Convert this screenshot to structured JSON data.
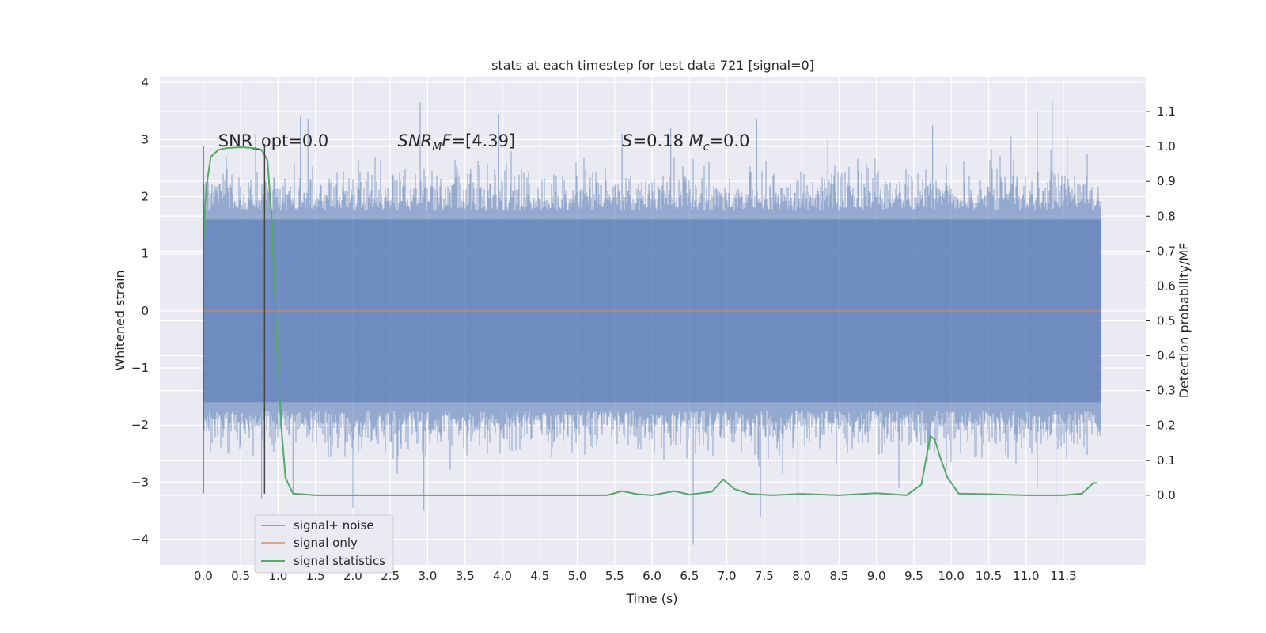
{
  "chart_data": {
    "type": "line",
    "title": "stats at each timestep for test data 721 [signal=0]",
    "xlabel": "Time (s)",
    "ylabel": "Whitened strain",
    "ylabel_right": "Detection probability/MF",
    "xlim": [
      -0.58,
      12.6
    ],
    "ylim": [
      -4.45,
      4.1
    ],
    "ylim_right": [
      -0.2,
      1.2
    ],
    "x_ticks": [
      "0.0",
      "0.5",
      "1.0",
      "1.5",
      "2.0",
      "2.5",
      "3.0",
      "3.5",
      "4.0",
      "4.5",
      "5.0",
      "5.5",
      "6.0",
      "6.5",
      "7.0",
      "7.5",
      "8.0",
      "8.5",
      "9.0",
      "9.5",
      "10.0",
      "10.5",
      "11.0",
      "11.5"
    ],
    "y_ticks": [
      "4",
      "3",
      "2",
      "1",
      "0",
      "−1",
      "−2",
      "−3",
      "−4"
    ],
    "y_right_ticks": [
      "1.1",
      "1.0",
      "0.9",
      "0.8",
      "0.7",
      "0.6",
      "0.5",
      "0.4",
      "0.3",
      "0.2",
      "0.1",
      "0.0"
    ],
    "grid": true,
    "legend_position": "lower-left",
    "annotations": [
      {
        "x": 0.2,
        "y": 2.98,
        "parts": [
          {
            "t": "SNR_opt=0.0"
          }
        ]
      },
      {
        "x": 2.6,
        "y": 2.98,
        "parts": [
          {
            "t": "SNR",
            "i": true
          },
          {
            "t": "M",
            "i": true,
            "sub": true
          },
          {
            "t": "F",
            "i": true
          },
          {
            "t": "=[4.39]"
          }
        ]
      },
      {
        "x": 5.6,
        "y": 2.98,
        "parts": [
          {
            "t": "S",
            "i": true
          },
          {
            "t": "=0.18   "
          },
          {
            "t": "M",
            "i": true
          },
          {
            "t": "c",
            "i": true,
            "sub": true
          },
          {
            "t": "=0.0"
          }
        ]
      }
    ],
    "vlines": [
      {
        "x": 0.0,
        "y0": -3.2,
        "y1": 2.88
      },
      {
        "x": 0.82,
        "y0": -3.2,
        "y1": 2.92
      }
    ],
    "series": [
      {
        "name": "signal+ noise",
        "color": "#4c72b0",
        "style": "noise",
        "x_range": [
          0.0,
          12.0
        ],
        "envelope_outer": 2.3,
        "envelope_core": 1.6,
        "spikes": [
          {
            "x": 0.7,
            "y": 3.1
          },
          {
            "x": 1.3,
            "y": 3.4
          },
          {
            "x": 1.4,
            "y": 3.35
          },
          {
            "x": 2.9,
            "y": 3.65
          },
          {
            "x": 3.95,
            "y": 3.45
          },
          {
            "x": 5.6,
            "y": 3.1
          },
          {
            "x": 6.25,
            "y": 3.2
          },
          {
            "x": 7.4,
            "y": 3.35
          },
          {
            "x": 8.35,
            "y": 3.0
          },
          {
            "x": 9.75,
            "y": 3.25
          },
          {
            "x": 10.8,
            "y": 3.05
          },
          {
            "x": 11.15,
            "y": 3.5
          },
          {
            "x": 11.35,
            "y": 3.7
          },
          {
            "x": 11.55,
            "y": 3.1
          },
          {
            "x": 0.78,
            "y": -3.3
          },
          {
            "x": 1.2,
            "y": -3.2
          },
          {
            "x": 2.0,
            "y": -3.45
          },
          {
            "x": 2.95,
            "y": -3.5
          },
          {
            "x": 6.55,
            "y": -4.1
          },
          {
            "x": 7.45,
            "y": -3.6
          },
          {
            "x": 7.95,
            "y": -3.35
          },
          {
            "x": 9.3,
            "y": -3.1
          },
          {
            "x": 11.15,
            "y": -3.1
          },
          {
            "x": 11.4,
            "y": -3.35
          }
        ]
      },
      {
        "name": "signal only",
        "color": "#dd8452",
        "x": [
          0.0,
          12.0
        ],
        "y": [
          0.0,
          0.0
        ]
      },
      {
        "name": "signal statistics",
        "color": "#55a868",
        "axis": "right",
        "x": [
          0.0,
          0.04,
          0.1,
          0.2,
          0.3,
          0.5,
          0.7,
          0.78,
          0.86,
          0.92,
          0.98,
          1.05,
          1.1,
          1.2,
          1.5,
          2.0,
          3.0,
          4.0,
          5.0,
          5.4,
          5.6,
          5.8,
          6.0,
          6.3,
          6.5,
          6.8,
          6.95,
          7.1,
          7.3,
          7.6,
          8.0,
          8.5,
          9.0,
          9.4,
          9.6,
          9.72,
          9.78,
          9.85,
          9.95,
          10.1,
          10.5,
          11.0,
          11.5,
          11.75,
          11.9,
          11.95
        ],
        "y": [
          0.72,
          0.88,
          0.97,
          0.99,
          0.995,
          0.998,
          0.995,
          0.99,
          0.96,
          0.78,
          0.45,
          0.18,
          0.05,
          0.005,
          0.0,
          0.0,
          0.0,
          0.0,
          0.0,
          0.0,
          0.012,
          0.003,
          0.0,
          0.012,
          0.002,
          0.01,
          0.045,
          0.018,
          0.004,
          0.0,
          0.004,
          0.0,
          0.006,
          0.0,
          0.03,
          0.17,
          0.16,
          0.11,
          0.05,
          0.005,
          0.003,
          0.0,
          0.0,
          0.005,
          0.035,
          0.035
        ]
      }
    ]
  }
}
